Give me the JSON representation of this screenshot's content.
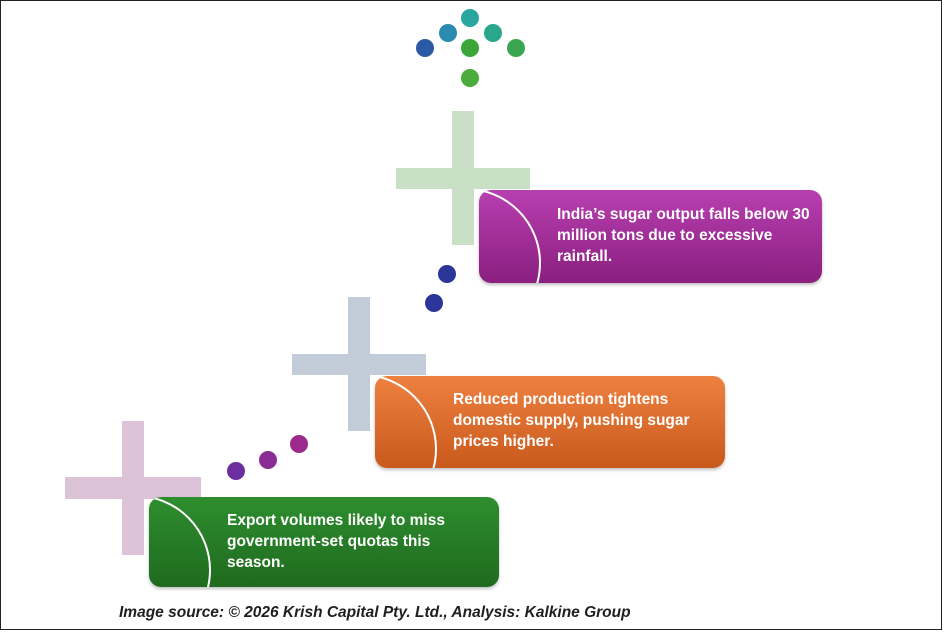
{
  "steps": [
    {
      "text": "Export volumes likely to miss government-set quotas this season.",
      "color": "#2a7d2a"
    },
    {
      "text": "Reduced production tightens domestic supply, pushing sugar prices higher.",
      "color": "#e06a2a"
    },
    {
      "text": "India’s sugar output falls below 30 million tons due to excessive rainfall.",
      "color": "#a8309a"
    }
  ],
  "caption": "Image source: © 2026 Krish Capital Pty. Ltd., Analysis: Kalkine Group",
  "colors": {
    "plus_1": "#dcc3d8",
    "plus_2": "#c3ccd9",
    "plus_3": "#c9e0c7",
    "dots_purple": "#6b2fa0",
    "dots_magenta": "#9c2a8c",
    "dots_blue": "#2c3598"
  }
}
